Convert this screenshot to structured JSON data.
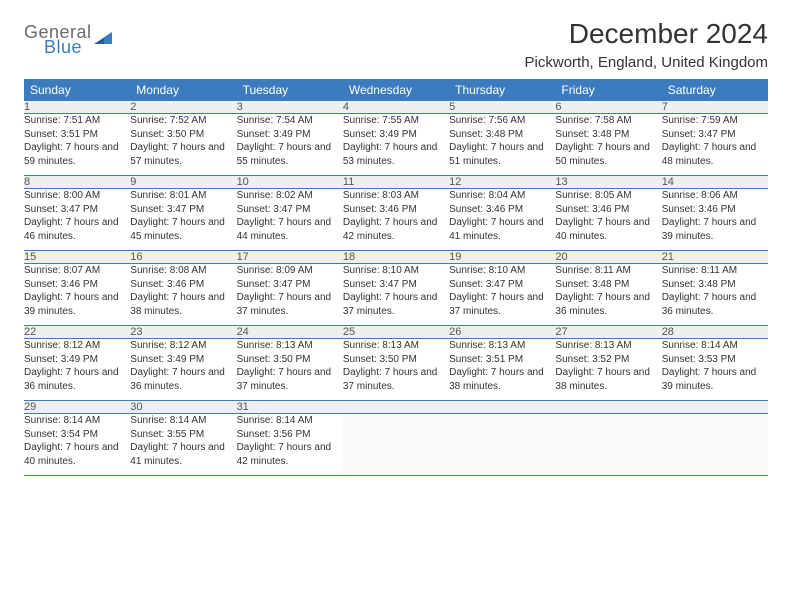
{
  "brand": {
    "line1": "General",
    "line2": "Blue",
    "accent": "#3b7bbf",
    "grey": "#6a6a6a"
  },
  "title": {
    "month": "December 2024",
    "location": "Pickworth, England, United Kingdom"
  },
  "header_bg": "#3b7bbf",
  "header_fg": "#ffffff",
  "daynum_bg": "#efefef",
  "row_border": "#3b7bbf",
  "dow": [
    "Sunday",
    "Monday",
    "Tuesday",
    "Wednesday",
    "Thursday",
    "Friday",
    "Saturday"
  ],
  "weeks": [
    [
      {
        "n": "1",
        "sr": "7:51 AM",
        "ss": "3:51 PM",
        "dl": "7 hours and 59 minutes."
      },
      {
        "n": "2",
        "sr": "7:52 AM",
        "ss": "3:50 PM",
        "dl": "7 hours and 57 minutes."
      },
      {
        "n": "3",
        "sr": "7:54 AM",
        "ss": "3:49 PM",
        "dl": "7 hours and 55 minutes."
      },
      {
        "n": "4",
        "sr": "7:55 AM",
        "ss": "3:49 PM",
        "dl": "7 hours and 53 minutes."
      },
      {
        "n": "5",
        "sr": "7:56 AM",
        "ss": "3:48 PM",
        "dl": "7 hours and 51 minutes."
      },
      {
        "n": "6",
        "sr": "7:58 AM",
        "ss": "3:48 PM",
        "dl": "7 hours and 50 minutes."
      },
      {
        "n": "7",
        "sr": "7:59 AM",
        "ss": "3:47 PM",
        "dl": "7 hours and 48 minutes."
      }
    ],
    [
      {
        "n": "8",
        "sr": "8:00 AM",
        "ss": "3:47 PM",
        "dl": "7 hours and 46 minutes."
      },
      {
        "n": "9",
        "sr": "8:01 AM",
        "ss": "3:47 PM",
        "dl": "7 hours and 45 minutes."
      },
      {
        "n": "10",
        "sr": "8:02 AM",
        "ss": "3:47 PM",
        "dl": "7 hours and 44 minutes."
      },
      {
        "n": "11",
        "sr": "8:03 AM",
        "ss": "3:46 PM",
        "dl": "7 hours and 42 minutes."
      },
      {
        "n": "12",
        "sr": "8:04 AM",
        "ss": "3:46 PM",
        "dl": "7 hours and 41 minutes."
      },
      {
        "n": "13",
        "sr": "8:05 AM",
        "ss": "3:46 PM",
        "dl": "7 hours and 40 minutes."
      },
      {
        "n": "14",
        "sr": "8:06 AM",
        "ss": "3:46 PM",
        "dl": "7 hours and 39 minutes."
      }
    ],
    [
      {
        "n": "15",
        "sr": "8:07 AM",
        "ss": "3:46 PM",
        "dl": "7 hours and 39 minutes."
      },
      {
        "n": "16",
        "sr": "8:08 AM",
        "ss": "3:46 PM",
        "dl": "7 hours and 38 minutes."
      },
      {
        "n": "17",
        "sr": "8:09 AM",
        "ss": "3:47 PM",
        "dl": "7 hours and 37 minutes."
      },
      {
        "n": "18",
        "sr": "8:10 AM",
        "ss": "3:47 PM",
        "dl": "7 hours and 37 minutes."
      },
      {
        "n": "19",
        "sr": "8:10 AM",
        "ss": "3:47 PM",
        "dl": "7 hours and 37 minutes."
      },
      {
        "n": "20",
        "sr": "8:11 AM",
        "ss": "3:48 PM",
        "dl": "7 hours and 36 minutes."
      },
      {
        "n": "21",
        "sr": "8:11 AM",
        "ss": "3:48 PM",
        "dl": "7 hours and 36 minutes."
      }
    ],
    [
      {
        "n": "22",
        "sr": "8:12 AM",
        "ss": "3:49 PM",
        "dl": "7 hours and 36 minutes."
      },
      {
        "n": "23",
        "sr": "8:12 AM",
        "ss": "3:49 PM",
        "dl": "7 hours and 36 minutes."
      },
      {
        "n": "24",
        "sr": "8:13 AM",
        "ss": "3:50 PM",
        "dl": "7 hours and 37 minutes."
      },
      {
        "n": "25",
        "sr": "8:13 AM",
        "ss": "3:50 PM",
        "dl": "7 hours and 37 minutes."
      },
      {
        "n": "26",
        "sr": "8:13 AM",
        "ss": "3:51 PM",
        "dl": "7 hours and 38 minutes."
      },
      {
        "n": "27",
        "sr": "8:13 AM",
        "ss": "3:52 PM",
        "dl": "7 hours and 38 minutes."
      },
      {
        "n": "28",
        "sr": "8:14 AM",
        "ss": "3:53 PM",
        "dl": "7 hours and 39 minutes."
      }
    ],
    [
      {
        "n": "29",
        "sr": "8:14 AM",
        "ss": "3:54 PM",
        "dl": "7 hours and 40 minutes."
      },
      {
        "n": "30",
        "sr": "8:14 AM",
        "ss": "3:55 PM",
        "dl": "7 hours and 41 minutes."
      },
      {
        "n": "31",
        "sr": "8:14 AM",
        "ss": "3:56 PM",
        "dl": "7 hours and 42 minutes."
      },
      null,
      null,
      null,
      null
    ]
  ],
  "labels": {
    "sunrise": "Sunrise:",
    "sunset": "Sunset:",
    "daylight": "Daylight:"
  }
}
